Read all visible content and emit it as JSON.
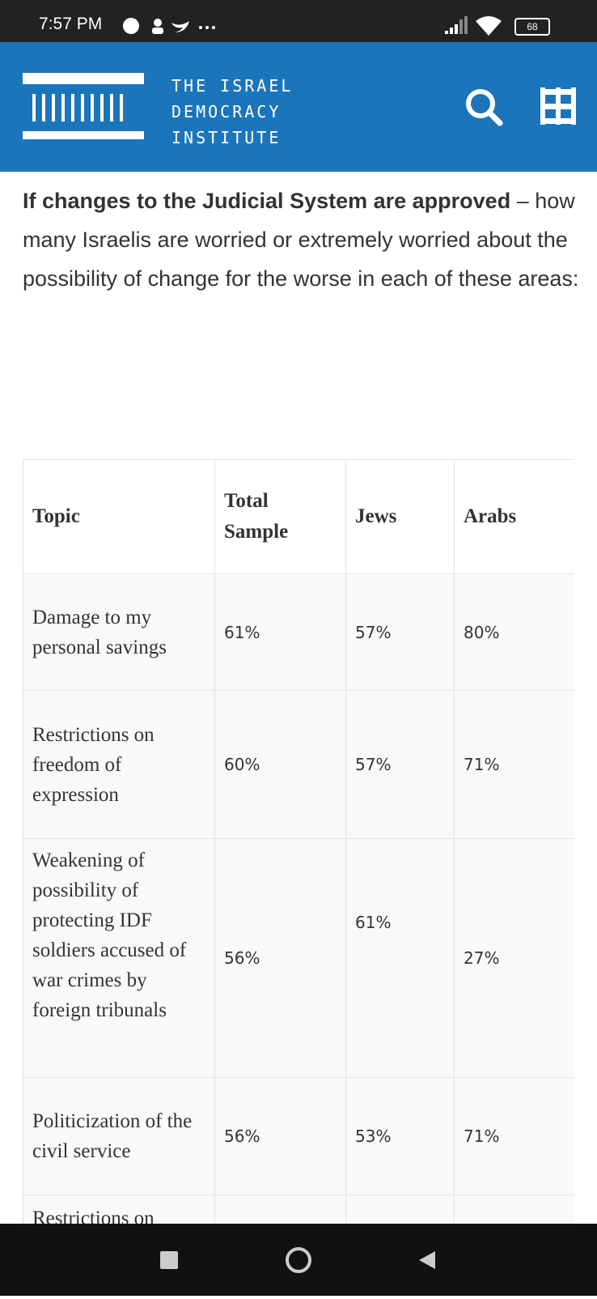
{
  "status_bar": {
    "time": "7:57 PM",
    "battery": "68"
  },
  "header": {
    "logo_lines": [
      "THE ISRAEL",
      "DEMOCRACY",
      "INSTITUTE"
    ]
  },
  "intro": {
    "bold": "If changes to the Judicial System are approved",
    "text": " – how many Israelis are worried or extremely worried about the possibility of change for the worse in each of these areas:"
  },
  "table": {
    "headers": [
      "Topic",
      "Total Sample",
      "Jews",
      "Arabs"
    ],
    "rows": [
      [
        "Damage to my personal savings",
        "61%",
        "57%",
        "80%"
      ],
      [
        "Restrictions on freedom of expression",
        "60%",
        "57%",
        "71%"
      ],
      [
        "Weakening of possibility of protecting IDF soldiers accused of war crimes by foreign tribunals",
        "56%",
        "61%",
        "27%"
      ],
      [
        "Politicization of the civil service",
        "56%",
        "53%",
        "71%"
      ],
      [
        "Restrictions on"
      ]
    ]
  }
}
